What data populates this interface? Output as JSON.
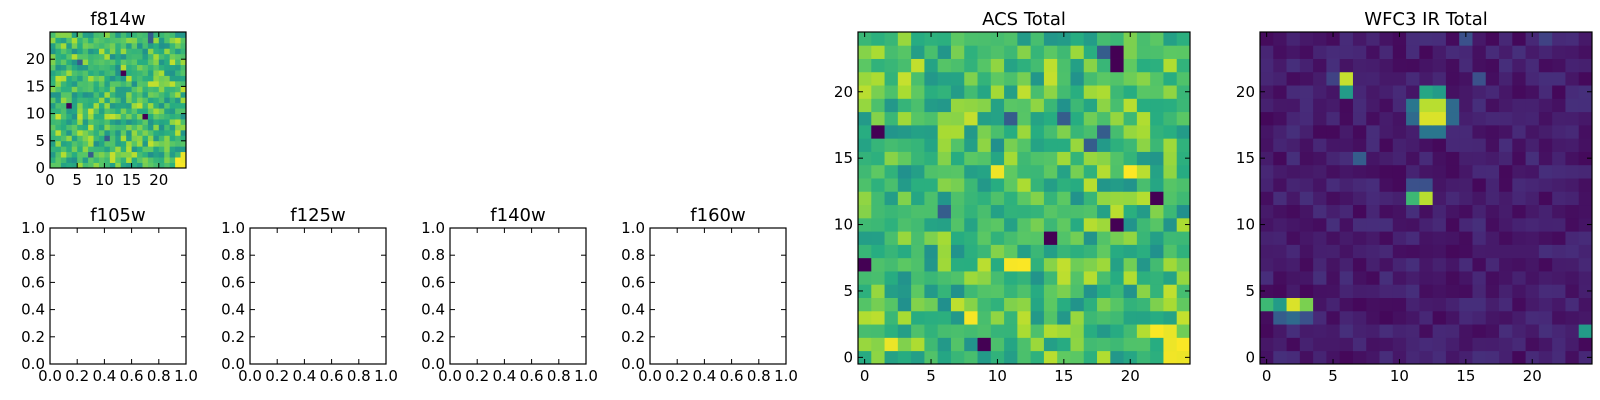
{
  "chart_data": [
    {
      "type": "heatmap",
      "title": "f814w",
      "colormap": "viridis",
      "grid_size": [
        25,
        25
      ],
      "xlim": [
        0,
        25
      ],
      "ylim": [
        0,
        25
      ],
      "xticks": [
        0,
        5,
        10,
        15,
        20
      ],
      "yticks": [
        0,
        5,
        10,
        15,
        20
      ],
      "vmin": 0,
      "vmax": 1,
      "pattern": "noisy-green",
      "seed": 7,
      "hot": [
        [
          23,
          0
        ],
        [
          24,
          0
        ],
        [
          23,
          1
        ],
        [
          24,
          1
        ],
        [
          24,
          2
        ]
      ],
      "cold": [
        [
          18,
          24
        ],
        [
          18,
          23
        ],
        [
          3,
          11
        ],
        [
          5,
          19
        ],
        [
          10,
          5
        ],
        [
          13,
          17
        ],
        [
          17,
          9
        ],
        [
          7,
          2
        ]
      ]
    },
    {
      "type": "empty",
      "title": "f105w",
      "xticks": [
        "0.0",
        "0.2",
        "0.4",
        "0.6",
        "0.8",
        "1.0"
      ],
      "yticks": [
        "0.0",
        "0.2",
        "0.4",
        "0.6",
        "0.8",
        "1.0"
      ]
    },
    {
      "type": "empty",
      "title": "f125w",
      "xticks": [
        "0.0",
        "0.2",
        "0.4",
        "0.6",
        "0.8",
        "1.0"
      ],
      "yticks": [
        "0.0",
        "0.2",
        "0.4",
        "0.6",
        "0.8",
        "1.0"
      ]
    },
    {
      "type": "empty",
      "title": "f140w",
      "xticks": [
        "0.0",
        "0.2",
        "0.4",
        "0.6",
        "0.8",
        "1.0"
      ],
      "yticks": [
        "0.0",
        "0.2",
        "0.4",
        "0.6",
        "0.8",
        "1.0"
      ]
    },
    {
      "type": "empty",
      "title": "f160w",
      "xticks": [
        "0.0",
        "0.2",
        "0.4",
        "0.6",
        "0.8",
        "1.0"
      ],
      "yticks": [
        "0.0",
        "0.2",
        "0.4",
        "0.6",
        "0.8",
        "1.0"
      ]
    },
    {
      "type": "heatmap",
      "title": "ACS Total",
      "colormap": "viridis",
      "grid_size": [
        25,
        25
      ],
      "xlim": [
        -0.5,
        24.5
      ],
      "ylim": [
        -0.5,
        24.5
      ],
      "xticks": [
        0,
        5,
        10,
        15,
        20
      ],
      "yticks": [
        0,
        5,
        10,
        15,
        20
      ],
      "vmin": 0,
      "vmax": 1,
      "pattern": "noisy-green",
      "seed": 19,
      "hot": [
        [
          22,
          2
        ],
        [
          23,
          2
        ],
        [
          23,
          1
        ],
        [
          24,
          1
        ],
        [
          24,
          0
        ],
        [
          23,
          0
        ],
        [
          11,
          7
        ],
        [
          12,
          7
        ],
        [
          10,
          14
        ],
        [
          8,
          3
        ],
        [
          2,
          1
        ],
        [
          20,
          14
        ]
      ],
      "cold": [
        [
          18,
          23
        ],
        [
          19,
          23
        ],
        [
          19,
          22
        ],
        [
          1,
          17
        ],
        [
          19,
          10
        ],
        [
          18,
          17
        ],
        [
          9,
          1
        ],
        [
          11,
          18
        ],
        [
          15,
          18
        ],
        [
          22,
          12
        ],
        [
          0,
          7
        ],
        [
          6,
          11
        ],
        [
          14,
          9
        ],
        [
          17,
          16
        ]
      ]
    },
    {
      "type": "heatmap",
      "title": "WFC3 IR Total",
      "colormap": "viridis",
      "grid_size": [
        25,
        25
      ],
      "xlim": [
        -0.5,
        24.5
      ],
      "ylim": [
        -0.5,
        24.5
      ],
      "xticks": [
        0,
        5,
        10,
        15,
        20
      ],
      "yticks": [
        0,
        5,
        10,
        15,
        20
      ],
      "vmin": 0,
      "vmax": 1,
      "pattern": "dark-sources",
      "seed": 41,
      "sources": [
        [
          12,
          19,
          0.9
        ],
        [
          13,
          19,
          0.9
        ],
        [
          12,
          18,
          0.95
        ],
        [
          13,
          18,
          0.95
        ],
        [
          12,
          20,
          0.6
        ],
        [
          13,
          20,
          0.55
        ],
        [
          11,
          18,
          0.35
        ],
        [
          14,
          18,
          0.35
        ],
        [
          11,
          19,
          0.4
        ],
        [
          14,
          19,
          0.35
        ],
        [
          12,
          17,
          0.4
        ],
        [
          13,
          17,
          0.4
        ],
        [
          6,
          21,
          0.92
        ],
        [
          6,
          20,
          0.55
        ],
        [
          5,
          21,
          0.2
        ],
        [
          11,
          12,
          0.68
        ],
        [
          12,
          12,
          0.9
        ],
        [
          11,
          13,
          0.25
        ],
        [
          12,
          13,
          0.25
        ],
        [
          0,
          4,
          0.68
        ],
        [
          1,
          4,
          0.55
        ],
        [
          2,
          4,
          0.95
        ],
        [
          3,
          4,
          0.8
        ],
        [
          1,
          3,
          0.3
        ],
        [
          2,
          3,
          0.35
        ],
        [
          3,
          3,
          0.25
        ],
        [
          24,
          2,
          0.55
        ],
        [
          7,
          15,
          0.3
        ],
        [
          16,
          21,
          0.25
        ],
        [
          15,
          24,
          0.25
        ],
        [
          21,
          24,
          0.2
        ]
      ]
    }
  ]
}
